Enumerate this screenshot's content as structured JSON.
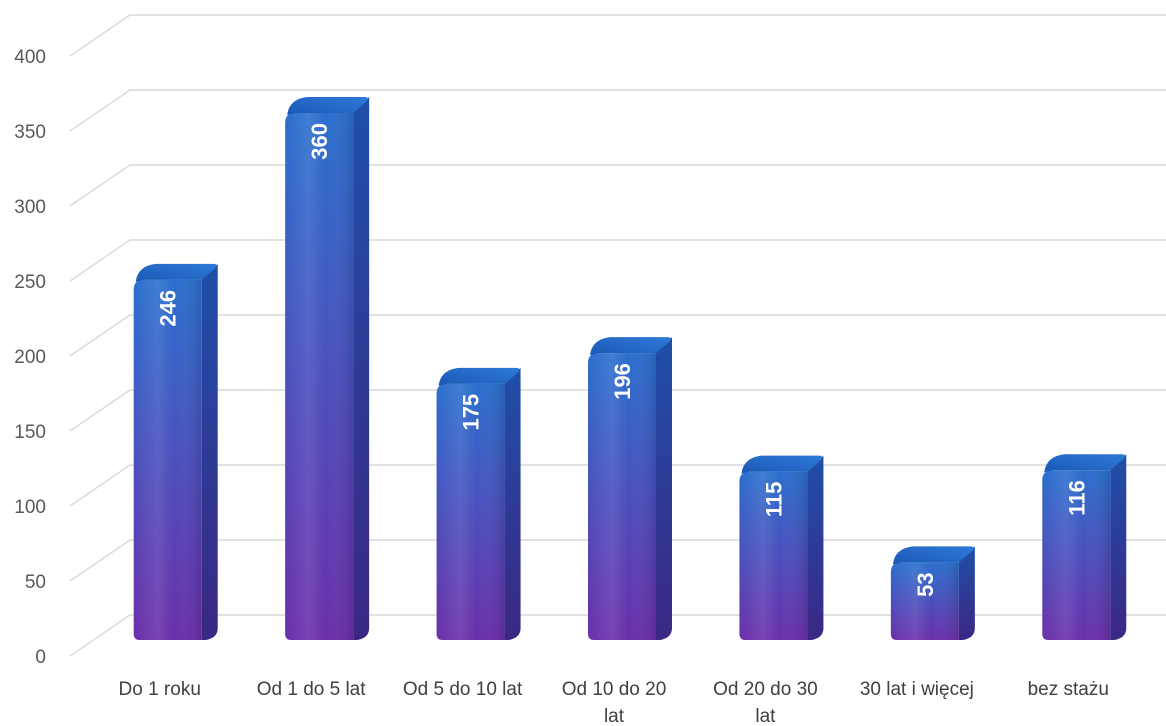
{
  "chart_data": {
    "type": "bar",
    "style": "3d-column",
    "categories": [
      "Do 1 roku",
      "Od 1 do 5 lat",
      "Od 5 do 10 lat",
      "Od 10 do 20 lat",
      "Od 20 do 30 lat",
      "30 lat i więcej",
      "bez stażu"
    ],
    "category_lines": [
      [
        "Do 1 roku"
      ],
      [
        "Od 1 do 5 lat"
      ],
      [
        "Od 5 do 10 lat"
      ],
      [
        "Od 10 do 20",
        "lat"
      ],
      [
        "Od 20 do 30",
        "lat"
      ],
      [
        "30 lat i więcej"
      ],
      [
        "bez stażu"
      ]
    ],
    "values": [
      246,
      360,
      175,
      196,
      115,
      53,
      116
    ],
    "data_labels": [
      "246",
      "360",
      "175",
      "196",
      "115",
      "53",
      "116"
    ],
    "y_ticks": [
      "0",
      "50",
      "100",
      "150",
      "200",
      "250",
      "300",
      "350",
      "400"
    ],
    "ylim": [
      0,
      400
    ],
    "grid": true,
    "legend": "none",
    "title": "",
    "xlabel": "",
    "ylabel": "",
    "colors": {
      "bar_top": "#2a6fce",
      "bar_bottom": "#6b2fa9",
      "bar_cap": "#1e5fb8",
      "bar_side": "#1f3f8e",
      "gridline": "#d9d9d9",
      "tick_text": "#595959"
    }
  }
}
